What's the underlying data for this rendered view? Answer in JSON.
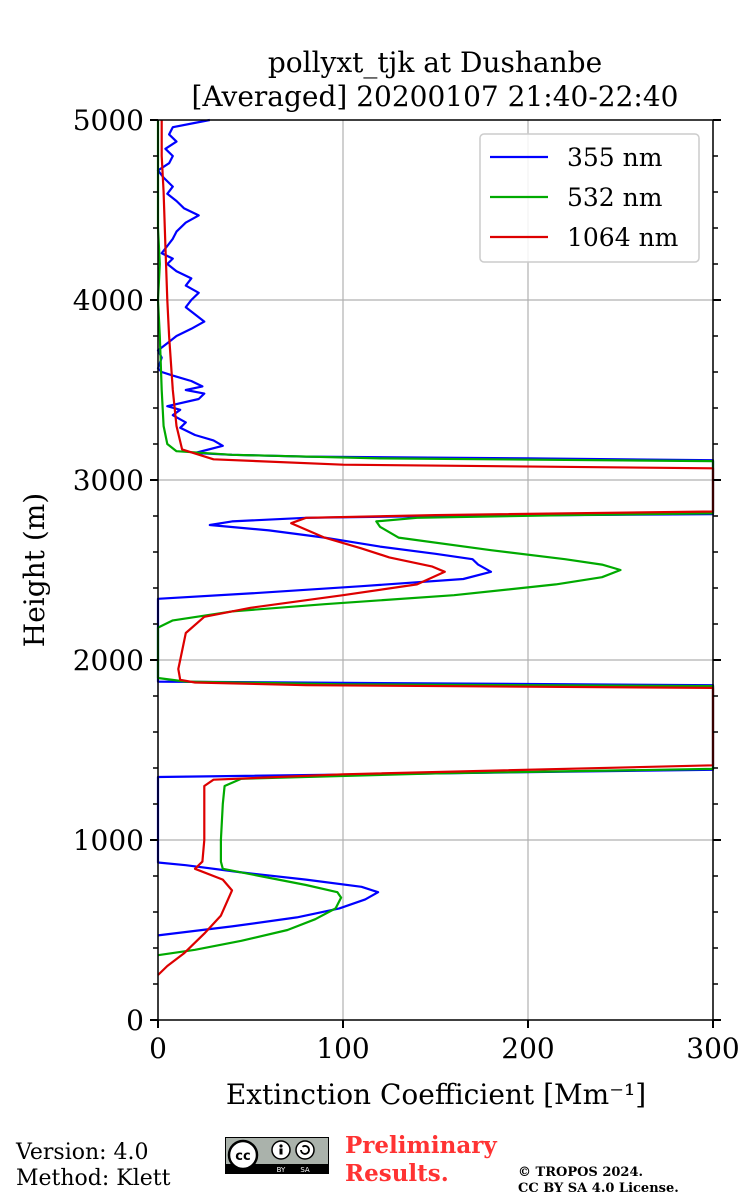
{
  "chart_data": {
    "type": "line",
    "title_line1": "pollyxt_tjk at Dushanbe",
    "title_line2": "[Averaged] 20200107 21:40-22:40",
    "xlabel": "Extinction Coefficient [Mm⁻¹]",
    "ylabel": "Height (m)",
    "xlim": [
      0,
      300
    ],
    "ylim": [
      0,
      5000
    ],
    "xticks": [
      0,
      100,
      200,
      300
    ],
    "yticks": [
      0,
      1000,
      2000,
      3000,
      4000,
      5000
    ],
    "grid": true,
    "legend_position": "top-right",
    "series": [
      {
        "name": "355 nm",
        "color": "#0000ff",
        "points": [
          [
            0,
            470
          ],
          [
            40,
            520
          ],
          [
            75,
            570
          ],
          [
            98,
            620
          ],
          [
            112,
            670
          ],
          [
            119,
            710
          ],
          [
            110,
            740
          ],
          [
            80,
            780
          ],
          [
            45,
            820
          ],
          [
            15,
            860
          ],
          [
            0,
            875
          ],
          [
            0,
            1350
          ],
          [
            300,
            1390
          ],
          [
            300,
            1860
          ],
          [
            0,
            1880
          ],
          [
            0,
            2340
          ],
          [
            50,
            2370
          ],
          [
            110,
            2410
          ],
          [
            165,
            2450
          ],
          [
            180,
            2490
          ],
          [
            173,
            2530
          ],
          [
            170,
            2560
          ],
          [
            150,
            2590
          ],
          [
            120,
            2630
          ],
          [
            90,
            2680
          ],
          [
            60,
            2720
          ],
          [
            28,
            2750
          ],
          [
            40,
            2770
          ],
          [
            80,
            2790
          ],
          [
            150,
            2800
          ],
          [
            300,
            2810
          ],
          [
            300,
            3110
          ],
          [
            200,
            3120
          ],
          [
            80,
            3130
          ],
          [
            40,
            3140
          ],
          [
            20,
            3150
          ],
          [
            35,
            3190
          ],
          [
            30,
            3220
          ],
          [
            20,
            3250
          ],
          [
            12,
            3290
          ],
          [
            15,
            3320
          ],
          [
            8,
            3360
          ],
          [
            12,
            3390
          ],
          [
            5,
            3410
          ],
          [
            22,
            3450
          ],
          [
            25,
            3480
          ],
          [
            15,
            3500
          ],
          [
            24,
            3520
          ],
          [
            18,
            3550
          ],
          [
            8,
            3580
          ],
          [
            2,
            3600
          ],
          [
            0,
            3620
          ],
          [
            2,
            3680
          ],
          [
            0,
            3720
          ],
          [
            5,
            3760
          ],
          [
            10,
            3800
          ],
          [
            18,
            3840
          ],
          [
            25,
            3880
          ],
          [
            20,
            3920
          ],
          [
            15,
            3960
          ],
          [
            18,
            4000
          ],
          [
            22,
            4040
          ],
          [
            15,
            4080
          ],
          [
            18,
            4120
          ],
          [
            10,
            4160
          ],
          [
            5,
            4200
          ],
          [
            8,
            4230
          ],
          [
            2,
            4260
          ],
          [
            5,
            4300
          ],
          [
            8,
            4340
          ],
          [
            10,
            4380
          ],
          [
            15,
            4430
          ],
          [
            22,
            4470
          ],
          [
            14,
            4510
          ],
          [
            10,
            4550
          ],
          [
            5,
            4590
          ],
          [
            8,
            4630
          ],
          [
            3,
            4680
          ],
          [
            0,
            4720
          ],
          [
            6,
            4760
          ],
          [
            8,
            4800
          ],
          [
            4,
            4840
          ],
          [
            10,
            4880
          ],
          [
            6,
            4920
          ],
          [
            8,
            4960
          ],
          [
            28,
            5000
          ]
        ]
      },
      {
        "name": "532 nm",
        "color": "#00aa00",
        "points": [
          [
            0,
            360
          ],
          [
            20,
            390
          ],
          [
            45,
            440
          ],
          [
            70,
            500
          ],
          [
            85,
            560
          ],
          [
            96,
            620
          ],
          [
            99,
            680
          ],
          [
            97,
            710
          ],
          [
            80,
            750
          ],
          [
            55,
            800
          ],
          [
            35,
            840
          ],
          [
            34,
            880
          ],
          [
            34,
            1000
          ],
          [
            35,
            1200
          ],
          [
            36,
            1300
          ],
          [
            45,
            1340
          ],
          [
            150,
            1370
          ],
          [
            300,
            1395
          ],
          [
            300,
            1855
          ],
          [
            100,
            1865
          ],
          [
            15,
            1880
          ],
          [
            0,
            1900
          ],
          [
            0,
            2180
          ],
          [
            8,
            2220
          ],
          [
            40,
            2270
          ],
          [
            90,
            2310
          ],
          [
            160,
            2360
          ],
          [
            215,
            2420
          ],
          [
            240,
            2460
          ],
          [
            250,
            2500
          ],
          [
            240,
            2530
          ],
          [
            220,
            2560
          ],
          [
            180,
            2610
          ],
          [
            130,
            2680
          ],
          [
            120,
            2740
          ],
          [
            118,
            2770
          ],
          [
            140,
            2790
          ],
          [
            220,
            2805
          ],
          [
            300,
            2815
          ],
          [
            300,
            3105
          ],
          [
            120,
            3120
          ],
          [
            40,
            3140
          ],
          [
            10,
            3160
          ],
          [
            5,
            3200
          ],
          [
            3,
            3300
          ],
          [
            2,
            3500
          ],
          [
            1,
            3800
          ],
          [
            0,
            4000
          ],
          [
            1,
            4200
          ],
          [
            0,
            4400
          ],
          [
            0,
            4700
          ],
          [
            0,
            5000
          ]
        ]
      },
      {
        "name": "1064 nm",
        "color": "#dd0000",
        "points": [
          [
            0,
            250
          ],
          [
            5,
            300
          ],
          [
            14,
            370
          ],
          [
            25,
            480
          ],
          [
            34,
            580
          ],
          [
            40,
            720
          ],
          [
            35,
            780
          ],
          [
            20,
            840
          ],
          [
            24,
            880
          ],
          [
            25,
            1000
          ],
          [
            25,
            1200
          ],
          [
            25,
            1300
          ],
          [
            30,
            1335
          ],
          [
            100,
            1365
          ],
          [
            300,
            1415
          ],
          [
            300,
            1845
          ],
          [
            80,
            1860
          ],
          [
            20,
            1875
          ],
          [
            12,
            1890
          ],
          [
            11,
            1950
          ],
          [
            12,
            2000
          ],
          [
            15,
            2150
          ],
          [
            25,
            2240
          ],
          [
            50,
            2290
          ],
          [
            100,
            2360
          ],
          [
            140,
            2420
          ],
          [
            155,
            2490
          ],
          [
            148,
            2520
          ],
          [
            125,
            2570
          ],
          [
            110,
            2620
          ],
          [
            90,
            2680
          ],
          [
            72,
            2760
          ],
          [
            80,
            2790
          ],
          [
            150,
            2805
          ],
          [
            300,
            2825
          ],
          [
            300,
            3065
          ],
          [
            100,
            3085
          ],
          [
            30,
            3115
          ],
          [
            13,
            3170
          ],
          [
            10,
            3300
          ],
          [
            8,
            3500
          ],
          [
            6,
            3800
          ],
          [
            5,
            4000
          ],
          [
            4,
            4300
          ],
          [
            3,
            4600
          ],
          [
            2,
            4800
          ],
          [
            2,
            5000
          ]
        ]
      }
    ]
  },
  "footer": {
    "version": "Version: 4.0",
    "method": "Method: Klett",
    "preliminary_line1": "Preliminary",
    "preliminary_line2": "Results.",
    "copyright_line1": "© TROPOS 2024.",
    "copyright_line2": "CC BY SA 4.0 License.",
    "badge_cc": "cc",
    "badge_by": "BY",
    "badge_sa": "SA"
  }
}
